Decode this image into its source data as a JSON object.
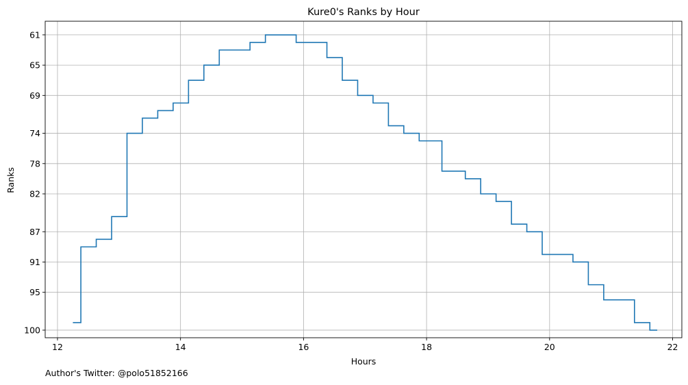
{
  "chart_data": {
    "type": "line",
    "step": "post",
    "title": "Kure0's Ranks by Hour",
    "xlabel": "Hours",
    "ylabel": "Ranks",
    "xlim": [
      11.8,
      22.15
    ],
    "ylim": [
      101,
      59.2
    ],
    "y_inverted": true,
    "grid": true,
    "xticks": [
      12,
      14,
      16,
      18,
      20,
      22
    ],
    "yticks": [
      61,
      65,
      69,
      74,
      78,
      82,
      87,
      91,
      95,
      100
    ],
    "line_color": "#1f77b4",
    "series": [
      {
        "x": [
          12.25,
          12.38,
          12.63,
          12.88,
          13.13,
          13.38,
          13.63,
          13.88,
          14.13,
          14.38,
          14.63,
          14.88,
          15.13,
          15.38,
          15.63,
          15.88,
          16.13,
          16.38,
          16.63,
          16.88,
          17.13,
          17.38,
          17.63,
          17.88,
          18.13,
          18.25,
          18.38,
          18.63,
          18.88,
          19.13,
          19.38,
          19.63,
          19.88,
          20.13,
          20.38,
          20.63,
          20.88,
          21.13,
          21.38,
          21.63,
          21.75
        ],
        "y": [
          99,
          89,
          88,
          85,
          74,
          72,
          71,
          70,
          67,
          65,
          63,
          63,
          62,
          61,
          61,
          62,
          62,
          64,
          67,
          69,
          70,
          73,
          74,
          75,
          75,
          79,
          79,
          80,
          82,
          83,
          86,
          87,
          90,
          90,
          91,
          94,
          96,
          96,
          99,
          100,
          100
        ]
      }
    ]
  },
  "footer": {
    "author": "Author's Twitter: @polo51852166"
  }
}
